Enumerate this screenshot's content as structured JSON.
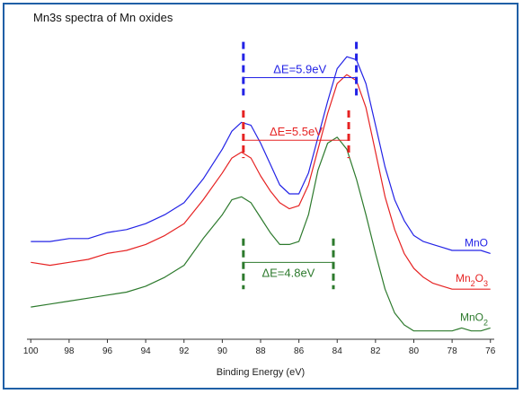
{
  "chart_data": {
    "type": "line",
    "title": "Mn3s spectra of Mn oxides",
    "xlabel": "Binding Energy (eV)",
    "ylabel": "",
    "xlim": [
      100.2,
      75.8
    ],
    "x_reversed": true,
    "ylim": [
      0,
      1
    ],
    "xticks": [
      100,
      98,
      96,
      94,
      92,
      90,
      88,
      86,
      84,
      82,
      80,
      78,
      76
    ],
    "grid": false,
    "series": [
      {
        "name": "MnO",
        "name_base": "MnO",
        "name_sub": "",
        "color": "#2323e6",
        "x": [
          100,
          99,
          98,
          97,
          96,
          95,
          94,
          93,
          92,
          91,
          90,
          89.5,
          89,
          88.5,
          88,
          87.5,
          87,
          86.5,
          86,
          85.5,
          85,
          84.5,
          84,
          83.5,
          83,
          82.5,
          82,
          81.5,
          81,
          80.5,
          80,
          79.5,
          79,
          78.5,
          78,
          77.5,
          77,
          76.5,
          76
        ],
        "y": [
          0.31,
          0.31,
          0.32,
          0.32,
          0.34,
          0.35,
          0.37,
          0.4,
          0.44,
          0.52,
          0.62,
          0.68,
          0.71,
          0.7,
          0.64,
          0.57,
          0.5,
          0.47,
          0.47,
          0.54,
          0.66,
          0.78,
          0.89,
          0.93,
          0.92,
          0.84,
          0.7,
          0.56,
          0.45,
          0.38,
          0.33,
          0.31,
          0.3,
          0.29,
          0.28,
          0.28,
          0.28,
          0.28,
          0.27
        ]
      },
      {
        "name": "Mn2O3",
        "name_base": "Mn",
        "name_sub": "2",
        "name_base2": "O",
        "name_sub2": "3",
        "color": "#e62323",
        "x": [
          100,
          99,
          98,
          97,
          96,
          95,
          94,
          93,
          92,
          91,
          90,
          89.5,
          89,
          88.5,
          88,
          87.5,
          87,
          86.5,
          86,
          85.5,
          85,
          84.5,
          84,
          83.5,
          83,
          82.5,
          82,
          81.5,
          81,
          80.5,
          80,
          79.5,
          79,
          78.5,
          78,
          77.5,
          77,
          76.5,
          76
        ],
        "y": [
          0.24,
          0.23,
          0.24,
          0.25,
          0.27,
          0.28,
          0.3,
          0.33,
          0.37,
          0.45,
          0.54,
          0.59,
          0.61,
          0.59,
          0.53,
          0.48,
          0.44,
          0.42,
          0.43,
          0.5,
          0.62,
          0.74,
          0.84,
          0.87,
          0.85,
          0.76,
          0.61,
          0.46,
          0.35,
          0.27,
          0.22,
          0.19,
          0.17,
          0.16,
          0.15,
          0.15,
          0.15,
          0.15,
          0.15
        ]
      },
      {
        "name": "MnO2",
        "name_base": "MnO",
        "name_sub": "2",
        "color": "#2d7a2d",
        "x": [
          100,
          99,
          98,
          97,
          96,
          95,
          94,
          93,
          92,
          91,
          90,
          89.5,
          89,
          88.5,
          88,
          87.5,
          87,
          86.5,
          86,
          85.5,
          85,
          84.5,
          84,
          83.5,
          83,
          82.5,
          82,
          81.5,
          81,
          80.5,
          80,
          79.5,
          79,
          78.5,
          78,
          77.5,
          77,
          76.5,
          76
        ],
        "y": [
          0.09,
          0.1,
          0.11,
          0.12,
          0.13,
          0.14,
          0.16,
          0.19,
          0.23,
          0.32,
          0.4,
          0.45,
          0.46,
          0.44,
          0.39,
          0.34,
          0.3,
          0.3,
          0.31,
          0.4,
          0.55,
          0.64,
          0.66,
          0.62,
          0.52,
          0.4,
          0.27,
          0.15,
          0.07,
          0.03,
          0.01,
          0.01,
          0.01,
          0.01,
          0.01,
          0.02,
          0.01,
          0.01,
          0.02
        ]
      }
    ],
    "annotations": [
      {
        "text": "ΔE=5.9eV",
        "color": "#2323e6",
        "x1": 88.9,
        "x2": 83.0,
        "y_line": 0.86,
        "marker_top": 0.98,
        "marker_bottom": 0.8,
        "label_pos": "above"
      },
      {
        "text": "ΔE=5.5eV",
        "color": "#e62323",
        "x1": 88.9,
        "x2": 83.4,
        "y_line": 0.65,
        "marker_top": 0.75,
        "marker_bottom": 0.59,
        "label_pos": "above"
      },
      {
        "text": "ΔE=4.8eV",
        "color": "#2d7a2d",
        "x1": 88.9,
        "x2": 84.2,
        "y_line": 0.24,
        "marker_top": 0.32,
        "marker_bottom": 0.15,
        "label_pos": "below"
      }
    ]
  }
}
